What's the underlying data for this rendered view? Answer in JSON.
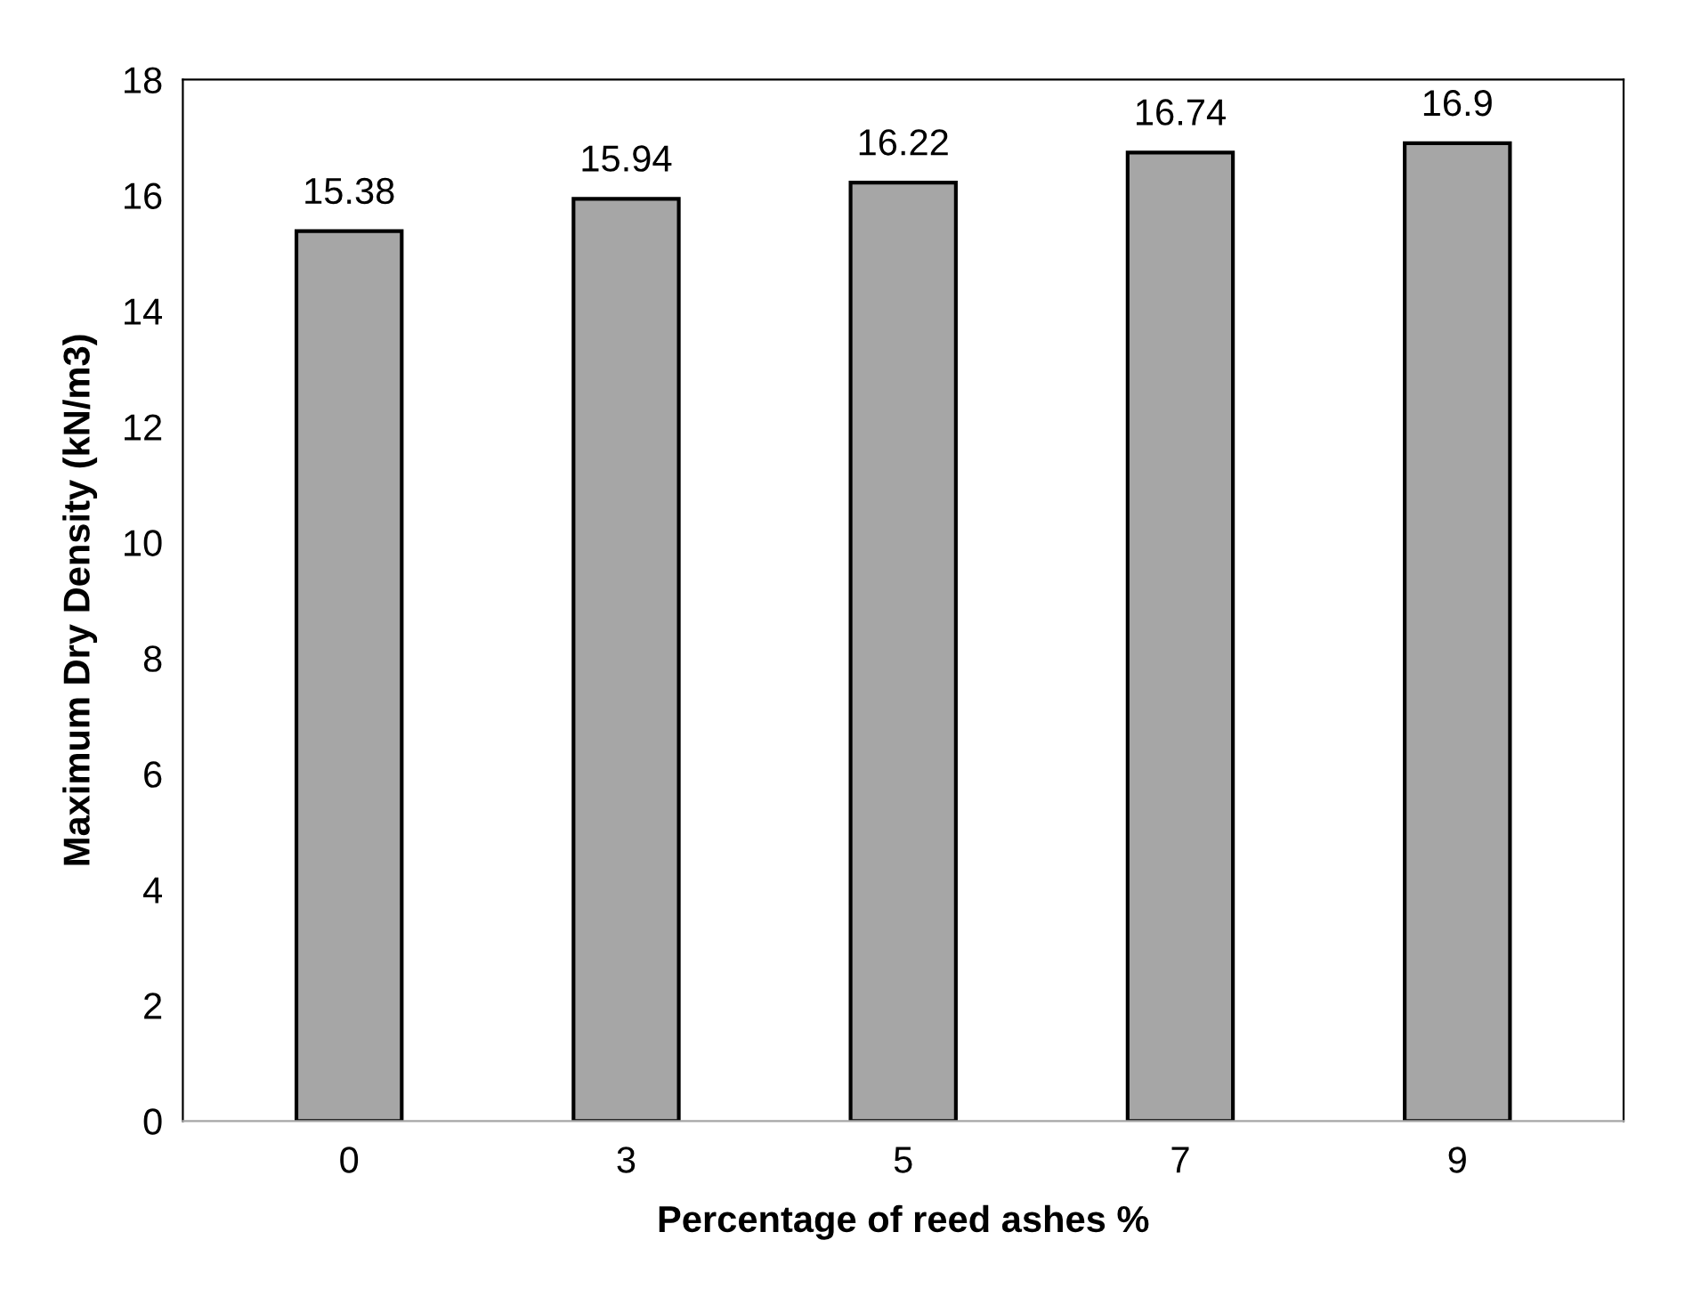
{
  "chart_data": {
    "type": "bar",
    "xlabel": "Percentage of reed ashes %",
    "ylabel": "Maximum Dry Density (kN/m3)",
    "categories": [
      "0",
      "3",
      "5",
      "7",
      "9"
    ],
    "values": [
      15.38,
      15.94,
      16.22,
      16.74,
      16.9
    ],
    "color": "#a6a6a6",
    "ylim": [
      0,
      18
    ],
    "yticks": [
      0,
      2,
      4,
      6,
      8,
      10,
      12,
      14,
      16,
      18
    ],
    "data_labels": true,
    "grid": false,
    "legend": false
  }
}
